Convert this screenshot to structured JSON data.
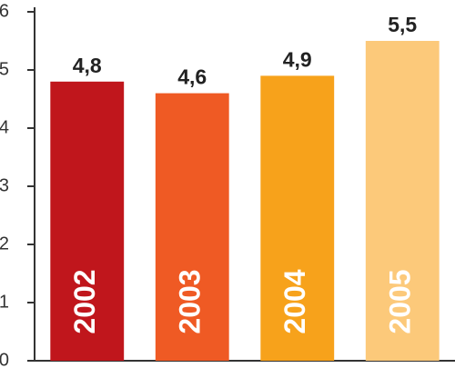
{
  "chart_data": {
    "type": "bar",
    "categories": [
      "2002",
      "2003",
      "2004",
      "2005"
    ],
    "values": [
      4.8,
      4.6,
      4.9,
      5.5
    ],
    "value_labels": [
      "4,8",
      "4,6",
      "4,9",
      "5,5"
    ],
    "colors": [
      "#c0161c",
      "#ef5a24",
      "#f7a21b",
      "#fcc97a"
    ],
    "ylim": [
      0,
      6
    ],
    "yticks": [
      0,
      1,
      2,
      3,
      4,
      5,
      6
    ]
  }
}
